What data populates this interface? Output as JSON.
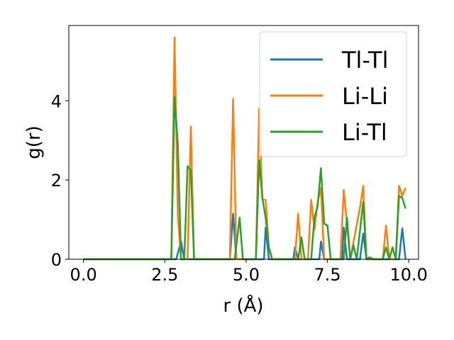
{
  "chart_data": {
    "type": "line",
    "title": "",
    "xlabel": "r (Å)",
    "ylabel": "g(r)",
    "xlim": [
      -0.45,
      10.3
    ],
    "ylim": [
      0,
      5.9
    ],
    "xticks": [
      0.0,
      2.5,
      5.0,
      7.5,
      10.0
    ],
    "xtick_labels": [
      "0.0",
      "2.5",
      "5.0",
      "7.5",
      "10.0"
    ],
    "yticks": [
      0,
      2,
      4
    ],
    "ytick_labels": [
      "0",
      "2",
      "4"
    ],
    "grid": false,
    "legend_position": "top-right",
    "series": [
      {
        "name": "Tl-Tl",
        "color": "#1f77b4",
        "points": [
          [
            0,
            0
          ],
          [
            2.7,
            0
          ],
          [
            2.85,
            0
          ],
          [
            3.0,
            0.45
          ],
          [
            3.1,
            0
          ],
          [
            4.5,
            0
          ],
          [
            4.6,
            1.15
          ],
          [
            4.7,
            0
          ],
          [
            5.55,
            0
          ],
          [
            5.6,
            0.8
          ],
          [
            5.7,
            0
          ],
          [
            6.45,
            0
          ],
          [
            6.5,
            0.3
          ],
          [
            6.6,
            0
          ],
          [
            7.25,
            0
          ],
          [
            7.3,
            0.45
          ],
          [
            7.4,
            0
          ],
          [
            7.95,
            0
          ],
          [
            8.0,
            0.8
          ],
          [
            8.1,
            0
          ],
          [
            8.5,
            0
          ],
          [
            8.6,
            0.65
          ],
          [
            8.7,
            0
          ],
          [
            9.7,
            0
          ],
          [
            9.8,
            0.78
          ],
          [
            9.9,
            0
          ]
        ]
      },
      {
        "name": "Li-Li",
        "color": "#ff7f0e",
        "points": [
          [
            0,
            0
          ],
          [
            2.7,
            0
          ],
          [
            2.8,
            5.6
          ],
          [
            2.9,
            1.1
          ],
          [
            3.0,
            0
          ],
          [
            3.2,
            0
          ],
          [
            3.3,
            3.35
          ],
          [
            3.4,
            0
          ],
          [
            4.5,
            0
          ],
          [
            4.6,
            4.05
          ],
          [
            4.7,
            0
          ],
          [
            5.3,
            0
          ],
          [
            5.4,
            3.8
          ],
          [
            5.5,
            1.5
          ],
          [
            5.6,
            1.5
          ],
          [
            5.7,
            0.3
          ],
          [
            5.8,
            0
          ],
          [
            6.5,
            0
          ],
          [
            6.6,
            1.15
          ],
          [
            6.7,
            0
          ],
          [
            6.9,
            0
          ],
          [
            7.0,
            1.5
          ],
          [
            7.1,
            0.75
          ],
          [
            7.2,
            1.45
          ],
          [
            7.3,
            1.8
          ],
          [
            7.4,
            0
          ],
          [
            7.9,
            0
          ],
          [
            8.0,
            1.75
          ],
          [
            8.1,
            0.9
          ],
          [
            8.2,
            0
          ],
          [
            8.5,
            1.3
          ],
          [
            8.6,
            1.85
          ],
          [
            8.7,
            0
          ],
          [
            9.2,
            0
          ],
          [
            9.3,
            0.85
          ],
          [
            9.4,
            0
          ],
          [
            9.5,
            0
          ],
          [
            9.6,
            0
          ],
          [
            9.7,
            1.85
          ],
          [
            9.8,
            1.6
          ],
          [
            9.9,
            1.8
          ]
        ]
      },
      {
        "name": "Li-Tl",
        "color": "#2ca02c",
        "points": [
          [
            0,
            0
          ],
          [
            2.7,
            0
          ],
          [
            2.8,
            4.1
          ],
          [
            2.9,
            2.9
          ],
          [
            3.0,
            0
          ],
          [
            3.1,
            0
          ],
          [
            3.2,
            2.35
          ],
          [
            3.3,
            2.25
          ],
          [
            3.4,
            0
          ],
          [
            4.55,
            0
          ],
          [
            4.65,
            0
          ],
          [
            4.8,
            1.05
          ],
          [
            4.9,
            0
          ],
          [
            5.3,
            0
          ],
          [
            5.4,
            2.5
          ],
          [
            5.5,
            1.55
          ],
          [
            5.6,
            1.05
          ],
          [
            5.7,
            0.3
          ],
          [
            5.8,
            0
          ],
          [
            6.6,
            0
          ],
          [
            6.7,
            0.55
          ],
          [
            6.8,
            0
          ],
          [
            7.0,
            0
          ],
          [
            7.1,
            1.05
          ],
          [
            7.2,
            1.35
          ],
          [
            7.3,
            2.3
          ],
          [
            7.4,
            0.9
          ],
          [
            7.5,
            0.85
          ],
          [
            7.6,
            0
          ],
          [
            8.0,
            0
          ],
          [
            8.1,
            1.05
          ],
          [
            8.2,
            0
          ],
          [
            8.3,
            0.35
          ],
          [
            8.4,
            0
          ],
          [
            8.6,
            1.45
          ],
          [
            8.7,
            0
          ],
          [
            8.8,
            0.05
          ],
          [
            8.9,
            0
          ],
          [
            9.2,
            0
          ],
          [
            9.3,
            0.3
          ],
          [
            9.4,
            0
          ],
          [
            9.5,
            0.3
          ],
          [
            9.6,
            0
          ],
          [
            9.7,
            1.6
          ],
          [
            9.8,
            1.55
          ],
          [
            9.9,
            1.28
          ]
        ]
      }
    ]
  }
}
